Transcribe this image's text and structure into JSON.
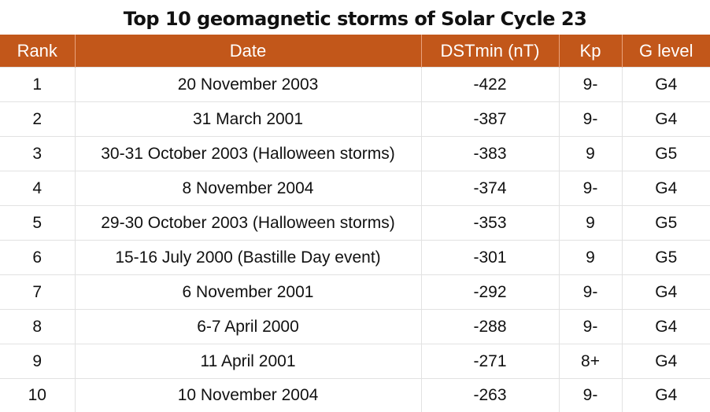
{
  "title": "Top 10 geomagnetic storms of Solar Cycle 23",
  "columns": [
    "Rank",
    "Date",
    "DSTmin (nT)",
    "Kp",
    "G level"
  ],
  "rows": [
    {
      "rank": "1",
      "date": "20 November 2003",
      "dst": "-422",
      "kp": "9-",
      "g": "G4"
    },
    {
      "rank": "2",
      "date": "31 March 2001",
      "dst": "-387",
      "kp": "9-",
      "g": "G4"
    },
    {
      "rank": "3",
      "date": "30-31 October 2003 (Halloween storms)",
      "dst": "-383",
      "kp": "9",
      "g": "G5"
    },
    {
      "rank": "4",
      "date": "8 November 2004",
      "dst": "-374",
      "kp": "9-",
      "g": "G4"
    },
    {
      "rank": "5",
      "date": "29-30 October 2003 (Halloween storms)",
      "dst": "-353",
      "kp": "9",
      "g": "G5"
    },
    {
      "rank": "6",
      "date": "15-16 July 2000 (Bastille Day event)",
      "dst": "-301",
      "kp": "9",
      "g": "G5"
    },
    {
      "rank": "7",
      "date": "6 November 2001",
      "dst": "-292",
      "kp": "9-",
      "g": "G4"
    },
    {
      "rank": "8",
      "date": "6-7 April 2000",
      "dst": "-288",
      "kp": "9-",
      "g": "G4"
    },
    {
      "rank": "9",
      "date": "11 April 2001",
      "dst": "-271",
      "kp": "8+",
      "g": "G4"
    },
    {
      "rank": "10",
      "date": "10 November 2004",
      "dst": "-263",
      "kp": "9-",
      "g": "G4"
    }
  ],
  "colors": {
    "header_bg": "#c2571a",
    "header_text": "#ffffff"
  }
}
